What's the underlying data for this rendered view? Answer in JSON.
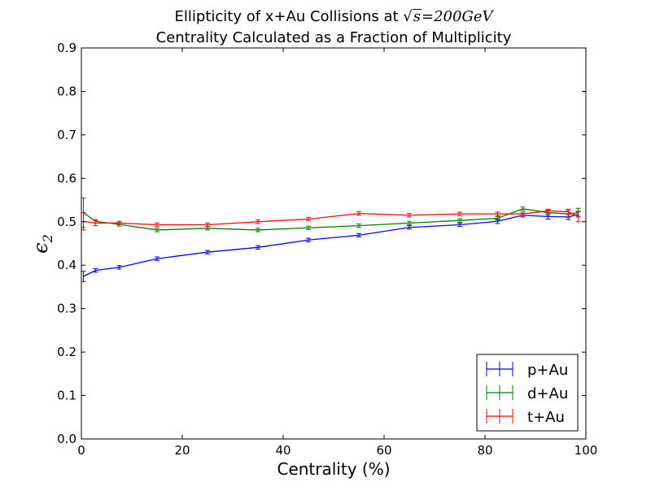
{
  "chart_data": {
    "type": "line",
    "title_line1_prefix": "Ellipticity of x+Au Collisions at ",
    "title_sqrt": "s",
    "title_energy": "=200GeV",
    "title_line2": "Centrality Calculated as a Fraction of Multiplicity",
    "xlabel": "Centrality (%)",
    "ylabel_symbol": "ϵ",
    "ylabel_subscript": "2",
    "xlim": [
      0,
      100
    ],
    "ylim": [
      0,
      0.9
    ],
    "xticks": [
      "0",
      "20",
      "40",
      "60",
      "80",
      "100"
    ],
    "yticks": [
      "0.0",
      "0.1",
      "0.2",
      "0.3",
      "0.4",
      "0.5",
      "0.6",
      "0.7",
      "0.8",
      "0.9"
    ],
    "grid": false,
    "legend_position": "lower-right",
    "series": [
      {
        "name": "p+Au",
        "color": "#0000ff",
        "x": [
          0.4,
          2.8,
          7.5,
          15,
          25,
          35,
          45,
          55,
          65,
          75,
          82.5,
          87.5,
          92.5,
          96.5,
          98.5
        ],
        "y": [
          0.374,
          0.388,
          0.395,
          0.415,
          0.43,
          0.441,
          0.458,
          0.469,
          0.487,
          0.493,
          0.501,
          0.515,
          0.512,
          0.511,
          0.517
        ],
        "err": [
          0.012,
          0.004,
          0.004,
          0.004,
          0.004,
          0.004,
          0.004,
          0.004,
          0.004,
          0.004,
          0.005,
          0.004,
          0.006,
          0.006,
          0.006
        ]
      },
      {
        "name": "d+Au",
        "color": "#008000",
        "x": [
          0.4,
          2.8,
          7.5,
          15,
          25,
          35,
          45,
          55,
          65,
          75,
          82.5,
          87.5,
          92.5,
          96.5,
          98.5
        ],
        "y": [
          0.521,
          0.501,
          0.494,
          0.481,
          0.485,
          0.481,
          0.486,
          0.491,
          0.497,
          0.503,
          0.508,
          0.53,
          0.521,
          0.518,
          0.521
        ],
        "err": [
          0.034,
          0.004,
          0.004,
          0.004,
          0.004,
          0.004,
          0.004,
          0.004,
          0.004,
          0.004,
          0.004,
          0.004,
          0.006,
          0.008,
          0.01
        ]
      },
      {
        "name": "t+Au",
        "color": "#ff0000",
        "x": [
          0.4,
          2.8,
          7.5,
          15,
          25,
          35,
          45,
          55,
          65,
          75,
          82.5,
          87.5,
          92.5,
          96.5,
          98.5
        ],
        "y": [
          0.501,
          0.497,
          0.497,
          0.493,
          0.493,
          0.5,
          0.506,
          0.519,
          0.515,
          0.518,
          0.518,
          0.518,
          0.525,
          0.523,
          0.512
        ],
        "err": [
          0.02,
          0.006,
          0.004,
          0.004,
          0.004,
          0.004,
          0.004,
          0.004,
          0.004,
          0.004,
          0.004,
          0.004,
          0.004,
          0.006,
          0.012
        ]
      }
    ]
  }
}
